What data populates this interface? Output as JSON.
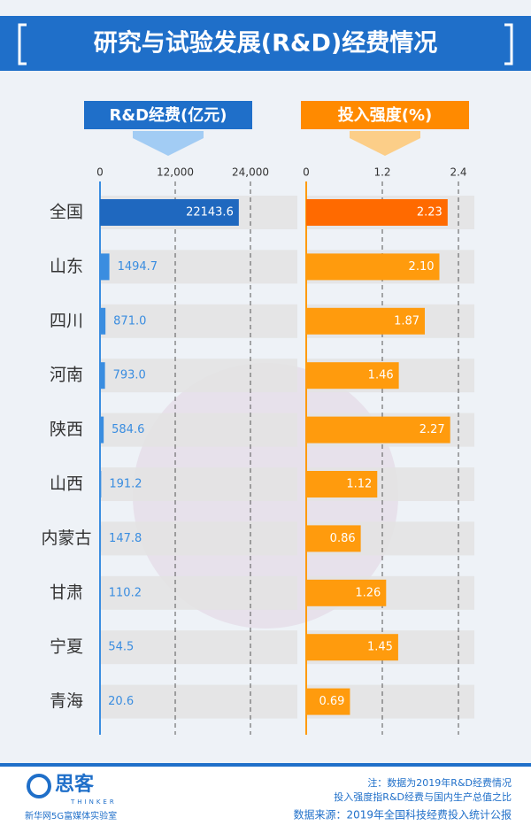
{
  "chart_data": {
    "type": "bar",
    "orientation": "horizontal",
    "title": "研究与试验发展(R&D)经费情况",
    "categories": [
      "全国",
      "山东",
      "四川",
      "河南",
      "陕西",
      "山西",
      "内蒙古",
      "甘肃",
      "宁夏",
      "青海"
    ],
    "series": [
      {
        "name": "R&D经费(亿元)",
        "color": "#3a8de0",
        "colors": [
          "#1f68bf",
          "#3a8de0",
          "#3a8de0",
          "#3a8de0",
          "#3a8de0",
          "#3a8de0",
          "#3a8de0",
          "#3a8de0",
          "#3a8de0",
          "#3a8de0"
        ],
        "values": [
          22143.6,
          1494.7,
          871.0,
          793.0,
          584.6,
          191.2,
          147.8,
          110.2,
          54.5,
          20.6
        ],
        "value_labels": [
          "22143.6",
          "1494.7",
          "871.0",
          "793.0",
          "584.6",
          "191.2",
          "147.8",
          "110.2",
          "54.5",
          "20.6"
        ],
        "xlim": [
          0,
          24000
        ],
        "xticks": [
          0,
          {
            "value": 12000,
            "label": "12,000"
          },
          {
            "value": 24000,
            "label": "24,000"
          }
        ]
      },
      {
        "name": "投入强度(%)",
        "color": "#ff9b0d",
        "colors": [
          "#ff6a00",
          "#ff9b0d",
          "#ff9b0d",
          "#ff9b0d",
          "#ff9b0d",
          "#ff9b0d",
          "#ff9b0d",
          "#ff9b0d",
          "#ff9b0d",
          "#ff9b0d"
        ],
        "values": [
          2.23,
          2.1,
          1.87,
          1.46,
          2.27,
          1.12,
          0.86,
          1.26,
          1.45,
          0.69
        ],
        "value_labels": [
          "2.23",
          "2.10",
          "1.87",
          "1.46",
          "2.27",
          "1.12",
          "0.86",
          "1.26",
          "1.45",
          "0.69"
        ],
        "xlim": [
          0,
          2.4
        ],
        "xticks": [
          0,
          1.2,
          2.4
        ]
      }
    ],
    "grid": true
  },
  "logo": {
    "name": "思客",
    "sub": "THINKER",
    "org": "新华网5G富媒体实验室"
  },
  "notes": [
    "注：数据为2019年R&D经费情况",
    "投入强度指R&D经费与国内生产总值之比"
  ],
  "source": "数据来源：2019年全国科技经费投入统计公报"
}
